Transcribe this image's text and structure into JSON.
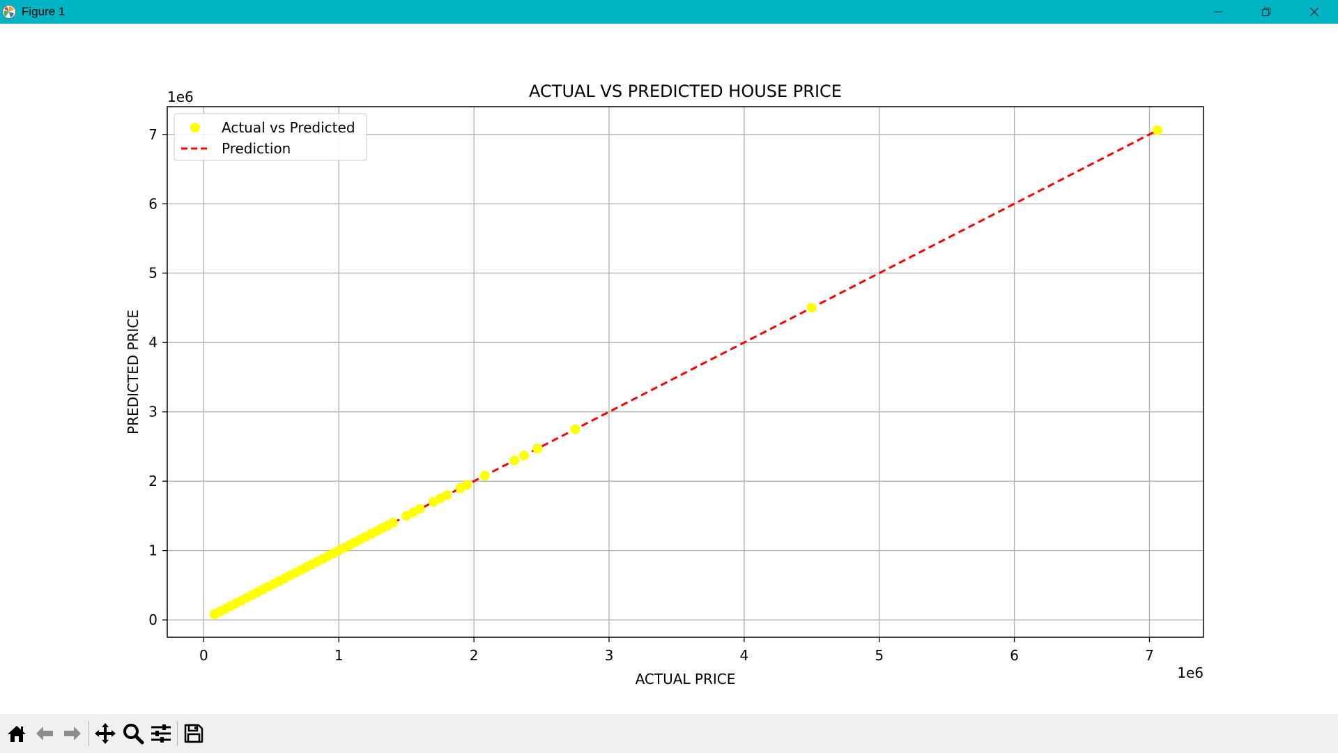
{
  "window": {
    "title": "Figure 1"
  },
  "toolbar": {
    "buttons": [
      {
        "name": "home-icon"
      },
      {
        "name": "back-arrow-icon"
      },
      {
        "name": "forward-arrow-icon"
      },
      {
        "name": "pan-icon"
      },
      {
        "name": "zoom-icon"
      },
      {
        "name": "configure-subplots-icon"
      },
      {
        "name": "save-icon"
      }
    ]
  },
  "chart_data": {
    "type": "scatter",
    "title": "ACTUAL VS PREDICTED HOUSE PRICE",
    "xlabel": "ACTUAL PRICE",
    "ylabel": "PREDICTED PRICE",
    "x_offset_label": "1e6",
    "y_offset_label": "1e6",
    "xlim": [
      -0.27,
      7.4
    ],
    "ylim": [
      -0.25,
      7.4
    ],
    "x_ticks": [
      0,
      1,
      2,
      3,
      4,
      5,
      6,
      7
    ],
    "y_ticks": [
      0,
      1,
      2,
      3,
      4,
      5,
      6,
      7
    ],
    "x_tick_labels": [
      "0",
      "1",
      "2",
      "3",
      "4",
      "5",
      "6",
      "7"
    ],
    "y_tick_labels": [
      "0",
      "1",
      "2",
      "3",
      "4",
      "5",
      "6",
      "7"
    ],
    "grid": true,
    "legend_position": "top-left",
    "colors": {
      "points": "#ffff00",
      "line": "#ff0000",
      "grid": "#b0b0b0"
    },
    "series": [
      {
        "name": "Actual vs Predicted",
        "kind": "scatter",
        "x": [
          0.08,
          0.12,
          0.16,
          0.2,
          0.24,
          0.28,
          0.32,
          0.36,
          0.4,
          0.44,
          0.48,
          0.52,
          0.56,
          0.6,
          0.64,
          0.68,
          0.72,
          0.76,
          0.8,
          0.84,
          0.88,
          0.92,
          0.96,
          1.0,
          1.04,
          1.08,
          1.12,
          1.16,
          1.2,
          1.24,
          1.28,
          1.32,
          1.36,
          1.4,
          1.5,
          1.55,
          1.6,
          1.7,
          1.75,
          1.8,
          1.9,
          1.95,
          2.08,
          2.3,
          2.37,
          2.47,
          2.75,
          4.5,
          7.06
        ],
        "y": [
          0.08,
          0.12,
          0.16,
          0.2,
          0.24,
          0.28,
          0.32,
          0.36,
          0.4,
          0.44,
          0.48,
          0.52,
          0.56,
          0.6,
          0.64,
          0.68,
          0.72,
          0.76,
          0.8,
          0.84,
          0.88,
          0.92,
          0.96,
          1.0,
          1.04,
          1.08,
          1.12,
          1.16,
          1.2,
          1.24,
          1.28,
          1.32,
          1.36,
          1.4,
          1.5,
          1.55,
          1.6,
          1.7,
          1.75,
          1.8,
          1.9,
          1.95,
          2.08,
          2.3,
          2.37,
          2.47,
          2.75,
          4.5,
          7.06
        ]
      },
      {
        "name": "Prediction",
        "kind": "line",
        "x": [
          0.08,
          7.06
        ],
        "y": [
          0.08,
          7.06
        ]
      }
    ]
  }
}
